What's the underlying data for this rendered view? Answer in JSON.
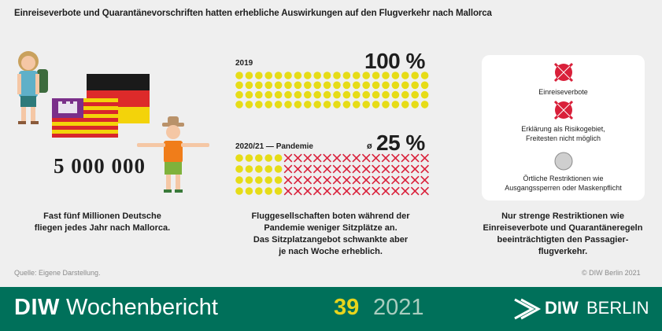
{
  "title": "Einreiseverbote und Quarantänevorschriften hatten erhebliche Auswirkungen auf den Flugverkehr nach Mallorca",
  "left": {
    "number": "5 000 000",
    "caption_line1": "Fast fünf Millionen Deutsche",
    "caption_line2": "fliegen jedes Jahr nach Mallorca."
  },
  "middle": {
    "label_2019": "2019",
    "pct_2019": "100 %",
    "label_pandemic": "2020/21 — Pandemie",
    "avg_symbol": "ø",
    "pct_pandemic": "25 %",
    "share_available_2019": 1.0,
    "share_available_pandemic": 0.25,
    "caption_line1": "Fluggesellschaften boten während der",
    "caption_line2": "Pandemie weniger Sitzplätze an.",
    "caption_line3": "Das Sitzplatzangebot schwankte aber",
    "caption_line4": "je nach Woche erheblich."
  },
  "right": {
    "restrictions": [
      {
        "icon": "crossed-out-icon",
        "line1": "Einreiseverbote",
        "line2": ""
      },
      {
        "icon": "crossed-out-icon",
        "line1": "Erklärung als Risikogebiet,",
        "line2": "Freitesten nicht möglich"
      },
      {
        "icon": "circle-icon",
        "line1": "Örtliche Restriktionen wie",
        "line2": "Ausgangssperren oder Maskenpflicht"
      }
    ],
    "caption_line1": "Nur strenge Restriktionen wie",
    "caption_line2": "Einreiseverbote und Quarantäneregeln",
    "caption_line3": "beeinträchtigten den Passagier-",
    "caption_line4": "flugverkehr."
  },
  "source": "Quelle: Eigene Darstellung.",
  "copyright": "© DIW Berlin 2021",
  "footer": {
    "brand": "DIW",
    "publication": "Wochenbericht",
    "issue": "39",
    "year": "2021",
    "logo_brand": "DIW",
    "logo_city": "BERLIN"
  },
  "colors": {
    "yellow": "#e6dc17",
    "red": "#d9203a",
    "green": "#00705a",
    "issue_yellow": "#e8d51c",
    "restriction_red": "#d9203a",
    "restriction_grey": "#cfcfcf"
  }
}
